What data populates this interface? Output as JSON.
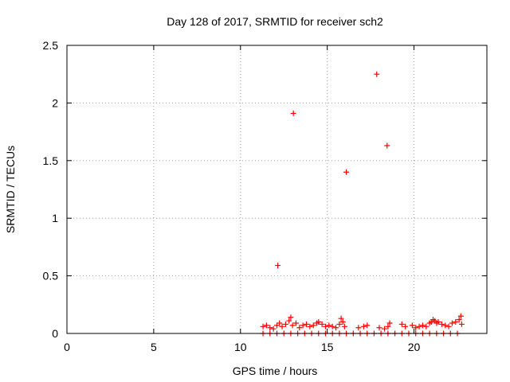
{
  "chart_data": {
    "type": "scatter",
    "title": "Day 128 of 2017, SRMTID for receiver sch2",
    "xlabel": "GPS time / hours",
    "ylabel": "SRMTID / TECUs",
    "xlim": [
      0,
      24.2
    ],
    "ylim": [
      0,
      2.5
    ],
    "xticks": [
      0,
      5,
      10,
      15,
      20
    ],
    "yticks": [
      0,
      0.5,
      1,
      1.5,
      2,
      2.5
    ],
    "ytick_labels": [
      "0",
      "0.5",
      "1",
      "1.5",
      "2",
      "2.5"
    ],
    "grid": true,
    "legend": "none",
    "marker": "plus",
    "series": [
      {
        "color": "#ff0000",
        "points": [
          [
            12.15,
            0.59
          ],
          [
            13.05,
            1.91
          ],
          [
            16.1,
            1.4
          ],
          [
            17.85,
            2.25
          ],
          [
            18.45,
            1.63
          ],
          [
            11.3,
            0.06
          ],
          [
            11.5,
            0.07
          ],
          [
            11.7,
            0.05
          ],
          [
            11.9,
            0.04
          ],
          [
            12.1,
            0.07
          ],
          [
            12.25,
            0.09
          ],
          [
            12.4,
            0.06
          ],
          [
            12.6,
            0.08
          ],
          [
            12.8,
            0.11
          ],
          [
            12.9,
            0.14
          ],
          [
            13.0,
            0.07
          ],
          [
            13.2,
            0.09
          ],
          [
            13.4,
            0.05
          ],
          [
            13.6,
            0.07
          ],
          [
            13.8,
            0.08
          ],
          [
            14.0,
            0.06
          ],
          [
            14.2,
            0.07
          ],
          [
            14.4,
            0.09
          ],
          [
            14.5,
            0.1
          ],
          [
            14.7,
            0.08
          ],
          [
            14.9,
            0.06
          ],
          [
            15.1,
            0.07
          ],
          [
            15.3,
            0.06
          ],
          [
            15.5,
            0.05
          ],
          [
            15.7,
            0.08
          ],
          [
            15.8,
            0.13
          ],
          [
            15.9,
            0.1
          ],
          [
            16.0,
            0.06
          ],
          [
            16.8,
            0.05
          ],
          [
            17.1,
            0.06
          ],
          [
            17.3,
            0.07
          ],
          [
            18.0,
            0.05
          ],
          [
            18.3,
            0.04
          ],
          [
            18.5,
            0.06
          ],
          [
            18.6,
            0.09
          ],
          [
            19.3,
            0.08
          ],
          [
            19.5,
            0.06
          ],
          [
            19.9,
            0.07
          ],
          [
            20.1,
            0.05
          ],
          [
            20.3,
            0.06
          ],
          [
            20.5,
            0.07
          ],
          [
            20.7,
            0.06
          ],
          [
            20.9,
            0.09
          ],
          [
            21.0,
            0.1
          ],
          [
            21.1,
            0.12
          ],
          [
            21.2,
            0.11
          ],
          [
            21.3,
            0.09
          ],
          [
            21.4,
            0.1
          ],
          [
            21.6,
            0.08
          ],
          [
            21.8,
            0.07
          ],
          [
            22.0,
            0.06
          ],
          [
            22.2,
            0.09
          ],
          [
            22.4,
            0.1
          ],
          [
            22.6,
            0.12
          ],
          [
            22.7,
            0.15
          ],
          [
            22.75,
            0.08
          ],
          [
            11.3,
            0.0
          ],
          [
            11.7,
            0.0
          ],
          [
            12.1,
            0.0
          ],
          [
            12.5,
            0.0
          ],
          [
            12.9,
            0.0
          ],
          [
            13.3,
            0.0
          ],
          [
            13.7,
            0.0
          ],
          [
            14.1,
            0.0
          ],
          [
            14.5,
            0.0
          ],
          [
            14.9,
            0.0
          ],
          [
            15.3,
            0.0
          ],
          [
            15.7,
            0.0
          ],
          [
            16.1,
            0.0
          ],
          [
            16.5,
            0.0
          ],
          [
            16.9,
            0.0
          ],
          [
            17.3,
            0.0
          ],
          [
            17.7,
            0.0
          ],
          [
            18.1,
            0.0
          ],
          [
            18.5,
            0.0
          ],
          [
            18.9,
            0.0
          ],
          [
            19.3,
            0.0
          ],
          [
            19.7,
            0.0
          ],
          [
            20.1,
            0.0
          ],
          [
            20.5,
            0.0
          ],
          [
            20.9,
            0.0
          ],
          [
            21.3,
            0.0
          ],
          [
            21.7,
            0.0
          ],
          [
            22.1,
            0.0
          ],
          [
            22.5,
            0.0
          ]
        ]
      }
    ]
  }
}
